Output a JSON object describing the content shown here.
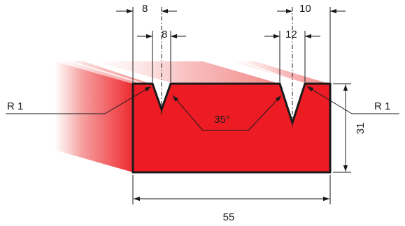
{
  "colors": {
    "body": "#ed1c24",
    "outline": "#1a1a1a",
    "shade": "#f08a8a"
  },
  "labels": {
    "top_left_width": "8",
    "top_left_inner": "8",
    "top_right_width": "10",
    "top_right_inner": "12",
    "left_radius": "R 1",
    "right_radius": "R 1",
    "angle": "35°",
    "height": "31",
    "width": "55"
  }
}
